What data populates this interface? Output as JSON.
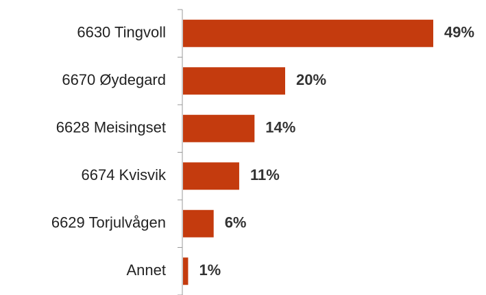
{
  "chart_data": {
    "type": "bar",
    "orientation": "horizontal",
    "categories": [
      "6630 Tingvoll",
      "6670 Øydegard",
      "6628 Meisingset",
      "6674 Kvisvik",
      "6629 Torjulvågen",
      "Annet"
    ],
    "values": [
      49,
      20,
      14,
      11,
      6,
      1
    ],
    "value_labels": [
      "49%",
      "20%",
      "14%",
      "11%",
      "6%",
      "1%"
    ],
    "color": "#c43b0e"
  }
}
